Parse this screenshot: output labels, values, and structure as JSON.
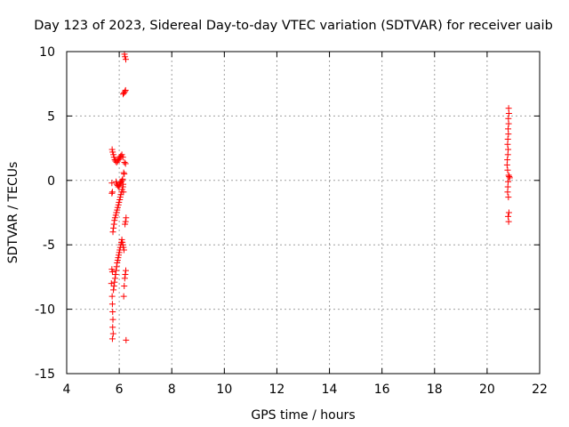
{
  "chart_data": {
    "type": "scatter",
    "title": "Day 123 of 2023, Sidereal Day-to-day VTEC variation (SDTVAR) for receiver uaib",
    "xlabel": "GPS time / hours",
    "ylabel": "SDTVAR / TECUs",
    "xlim": [
      4,
      22
    ],
    "ylim": [
      -15,
      10
    ],
    "xticks": [
      4,
      6,
      8,
      10,
      12,
      14,
      16,
      18,
      20,
      22
    ],
    "yticks": [
      -15,
      -10,
      -5,
      0,
      5,
      10
    ],
    "grid": true,
    "marker": "+",
    "color": "#ff0000",
    "series": [
      {
        "name": "uaib",
        "x": [
          6.2,
          6.22,
          6.25,
          6.24,
          6.15,
          6.18,
          6.22,
          5.73,
          5.75,
          5.78,
          5.8,
          5.83,
          5.86,
          5.9,
          5.94,
          5.97,
          6.0,
          6.03,
          6.06,
          6.1,
          6.14,
          6.2,
          6.24,
          6.17,
          6.19,
          5.72,
          5.74,
          5.72,
          5.88,
          5.91,
          5.94,
          5.97,
          6.0,
          6.03,
          6.05,
          6.08,
          6.11,
          6.13,
          6.16,
          5.76,
          5.78,
          5.8,
          5.82,
          5.84,
          5.87,
          5.89,
          5.92,
          5.94,
          5.97,
          5.99,
          6.02,
          6.04,
          6.06,
          6.09,
          6.11,
          6.14,
          6.15,
          6.26,
          6.24,
          6.22,
          5.78,
          5.8,
          5.82,
          5.84,
          5.86,
          5.88,
          5.9,
          5.92,
          5.94,
          5.96,
          5.98,
          6.0,
          6.02,
          6.04,
          6.06,
          6.08,
          6.1,
          6.12,
          6.14,
          6.16,
          6.18,
          5.72,
          5.74,
          5.7,
          6.25,
          6.23,
          6.21,
          6.19,
          6.17,
          5.74,
          5.75,
          5.76,
          5.75,
          5.77,
          5.74,
          5.73,
          6.26,
          20.82,
          20.83,
          20.81,
          20.82,
          20.8,
          20.81,
          20.79,
          20.78,
          20.8,
          20.79,
          20.77,
          20.76,
          20.78,
          20.82,
          20.86,
          20.84,
          20.8,
          20.79,
          20.78,
          20.81,
          20.83,
          20.8,
          20.82
        ],
        "y": [
          9.8,
          9.6,
          9.4,
          7.0,
          6.7,
          6.8,
          6.9,
          2.4,
          2.2,
          2.0,
          1.8,
          1.6,
          1.5,
          1.4,
          1.5,
          1.6,
          1.7,
          1.8,
          1.9,
          2.0,
          1.8,
          1.4,
          1.3,
          0.6,
          0.5,
          -0.2,
          -0.9,
          -1.0,
          -0.1,
          -0.3,
          -0.4,
          -0.5,
          -0.4,
          -0.3,
          -0.2,
          -0.1,
          0.0,
          0.1,
          -0.9,
          -4.0,
          -3.7,
          -3.4,
          -3.1,
          -2.9,
          -2.7,
          -2.5,
          -2.3,
          -2.1,
          -1.9,
          -1.7,
          -1.5,
          -1.3,
          -1.1,
          -0.9,
          -0.7,
          -0.5,
          -0.3,
          -2.9,
          -3.2,
          -3.4,
          -8.5,
          -8.2,
          -7.9,
          -7.6,
          -7.3,
          -7.0,
          -6.7,
          -6.4,
          -6.2,
          -6.0,
          -5.8,
          -5.6,
          -5.4,
          -5.2,
          -5.0,
          -4.8,
          -4.6,
          -4.8,
          -5.0,
          -5.2,
          -5.4,
          -6.9,
          -7.1,
          -8.0,
          -7.0,
          -7.3,
          -7.6,
          -8.2,
          -9.0,
          -9.6,
          -10.2,
          -10.8,
          -11.4,
          -11.9,
          -12.3,
          -9.0,
          -12.4,
          5.6,
          5.2,
          4.8,
          4.4,
          4.0,
          3.6,
          3.2,
          2.8,
          2.4,
          2.0,
          1.6,
          1.2,
          0.8,
          0.4,
          0.2,
          0.3,
          -0.1,
          -0.5,
          -0.9,
          -1.3,
          -2.5,
          -2.8,
          -3.2
        ]
      }
    ]
  }
}
